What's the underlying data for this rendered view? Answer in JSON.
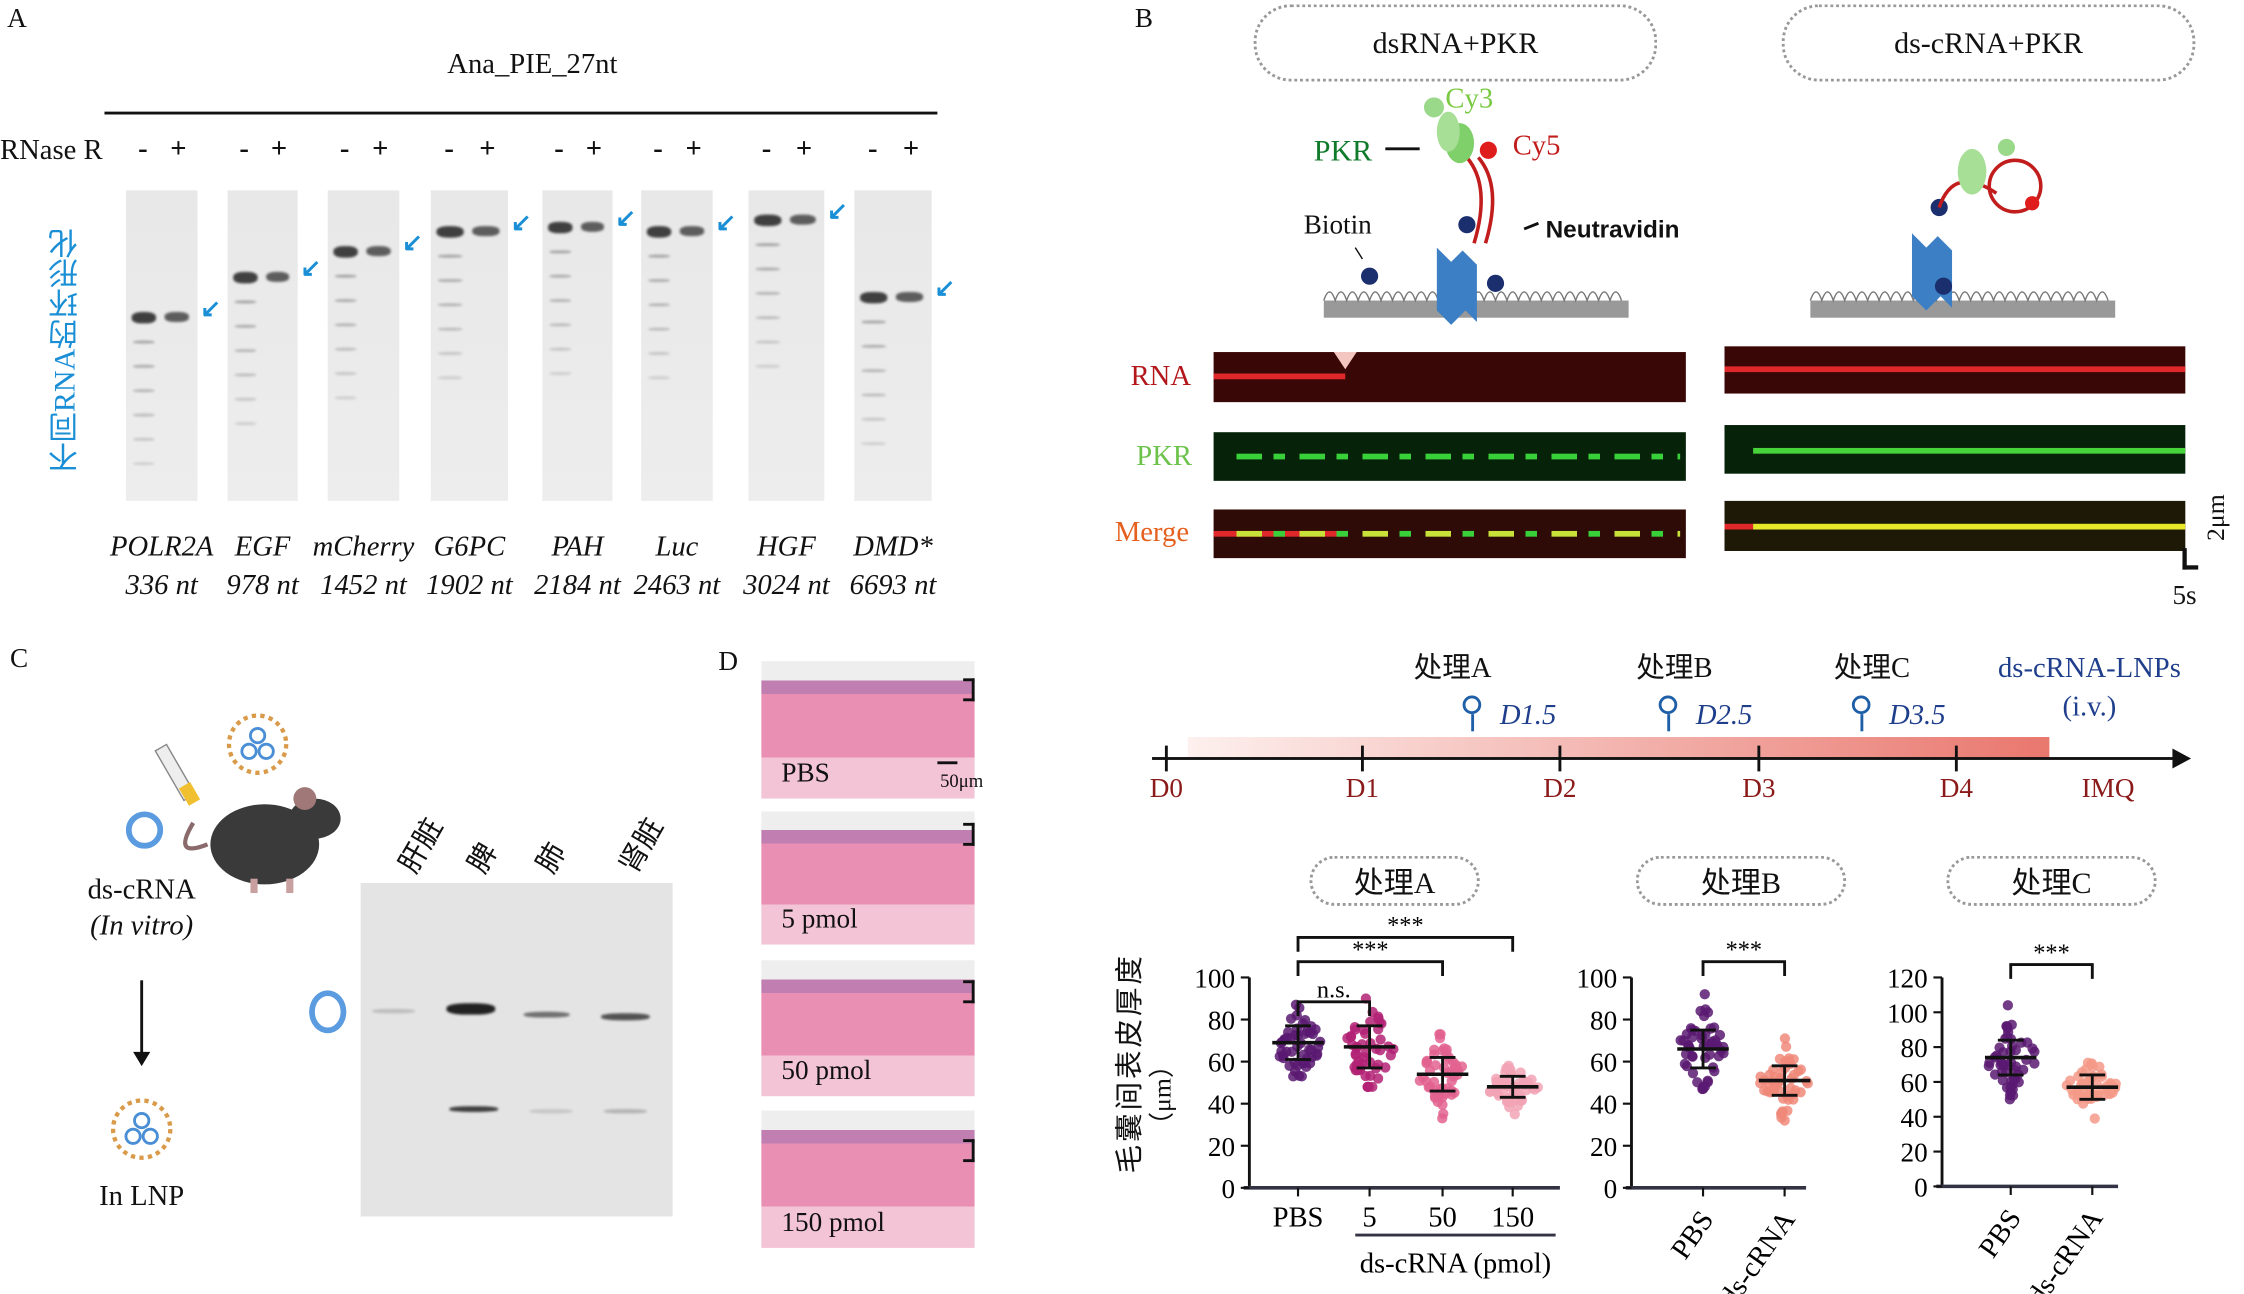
{
  "panel_labels": {
    "a": "A",
    "b": "B",
    "c": "C",
    "d": "D"
  },
  "panel_a": {
    "title": "Ana_PIE_27nt",
    "rnase_label": "RNase R",
    "minus": "-",
    "plus": "+",
    "side_label": "不同RNA的环形化",
    "genes": [
      {
        "name": "POLR2A",
        "length": "336 nt"
      },
      {
        "name": "EGF",
        "length": "978 nt"
      },
      {
        "name": "mCherry",
        "length": "1452 nt"
      },
      {
        "name": "G6PC",
        "length": "1902 nt"
      },
      {
        "name": "PAH",
        "length": "2184 nt"
      },
      {
        "name": "Luc",
        "length": "2463 nt"
      },
      {
        "name": "HGF",
        "length": "3024 nt"
      },
      {
        "name": "DMD*",
        "length": "6693 nt"
      }
    ],
    "arrow_color": "#1a8fd6"
  },
  "panel_b": {
    "conditions": [
      "dsRNA+PKR",
      "ds-cRNA+PKR"
    ],
    "schematic": {
      "cy3": "Cy3",
      "cy5": "Cy5",
      "pkr": "PKR",
      "biotin": "Biotin",
      "neutravidin": "Neutravidin"
    },
    "channels": [
      "RNA",
      "PKR",
      "Merge"
    ],
    "scale_y": "2μm",
    "scale_x": "5s"
  },
  "panel_c": {
    "rna": "ds-cRNA",
    "in_vitro": "(In vitro)",
    "lnp": "In LNP",
    "organs": [
      "肝脏",
      "脾",
      "肺",
      "肾脏"
    ]
  },
  "panel_d": {
    "groups": [
      "PBS",
      "5 pmol",
      "50 pmol",
      "150 pmol"
    ],
    "scale": "50μm"
  },
  "timeline": {
    "days": [
      "D0",
      "D1",
      "D2",
      "D3",
      "D4",
      "IMQ"
    ],
    "treatments": [
      {
        "label": "处理A",
        "day": "D1.5"
      },
      {
        "label": "处理B",
        "day": "D2.5"
      },
      {
        "label": "处理C",
        "day": "D3.5"
      }
    ],
    "lnp_label": "ds-cRNA-LNPs",
    "lnp_route": "(i.v.)"
  },
  "chart_data": [
    {
      "type": "scatter",
      "title": "处理A",
      "ylabel": "毛囊间表皮厚度",
      "yunit": "（μm）",
      "categories": [
        "PBS",
        "5",
        "50",
        "150"
      ],
      "group_label": "ds-cRNA (pmol)",
      "ylim": [
        0,
        100
      ],
      "yticks": [
        0,
        20,
        40,
        60,
        80,
        100
      ],
      "series": [
        {
          "name": "PBS",
          "mean": 69,
          "sd": 8,
          "min": 53,
          "max": 87,
          "color": "#5b1a72"
        },
        {
          "name": "5",
          "mean": 67,
          "sd": 10,
          "min": 48,
          "max": 90,
          "color": "#b32274"
        },
        {
          "name": "50",
          "mean": 54,
          "sd": 8,
          "min": 33,
          "max": 73,
          "color": "#e3638f"
        },
        {
          "name": "150",
          "mean": 48,
          "sd": 5,
          "min": 35,
          "max": 58,
          "color": "#f2a3b5"
        }
      ],
      "significance": [
        {
          "from": "PBS",
          "to": "5",
          "label": "n.s."
        },
        {
          "from": "PBS",
          "to": "50",
          "label": "***"
        },
        {
          "from": "PBS",
          "to": "150",
          "label": "***"
        }
      ]
    },
    {
      "type": "scatter",
      "title": "处理B",
      "categories": [
        "PBS",
        "ds-cRNA"
      ],
      "ylim": [
        0,
        100
      ],
      "yticks": [
        0,
        20,
        40,
        60,
        80,
        100
      ],
      "series": [
        {
          "name": "PBS",
          "mean": 66,
          "sd": 9,
          "min": 47,
          "max": 92,
          "color": "#5b1a72"
        },
        {
          "name": "ds-cRNA",
          "mean": 51,
          "sd": 7,
          "min": 32,
          "max": 71,
          "color": "#f08a7a"
        }
      ],
      "significance": [
        {
          "from": "PBS",
          "to": "ds-cRNA",
          "label": "***"
        }
      ]
    },
    {
      "type": "scatter",
      "title": "处理C",
      "categories": [
        "PBS",
        "ds-cRNA"
      ],
      "ylim": [
        0,
        120
      ],
      "yticks": [
        0,
        20,
        40,
        60,
        80,
        100,
        120
      ],
      "series": [
        {
          "name": "PBS",
          "mean": 74,
          "sd": 10,
          "min": 50,
          "max": 104,
          "color": "#5b1a72"
        },
        {
          "name": "ds-cRNA",
          "mean": 57,
          "sd": 7,
          "min": 39,
          "max": 71,
          "color": "#f49a88"
        }
      ],
      "significance": [
        {
          "from": "PBS",
          "to": "ds-cRNA",
          "label": "***"
        }
      ]
    }
  ]
}
